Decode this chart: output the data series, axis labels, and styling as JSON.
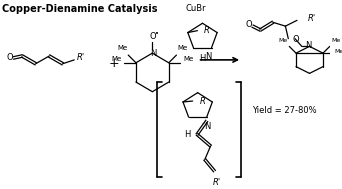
{
  "title": "Copper-Dienamine Catalysis",
  "yield_text": "Yield = 27-80%",
  "cubr_text": "CuBr",
  "bg_color": "#ffffff",
  "line_color": "#000000",
  "title_fontsize": 7.0,
  "label_fontsize": 6.0,
  "small_fontsize": 5.0
}
